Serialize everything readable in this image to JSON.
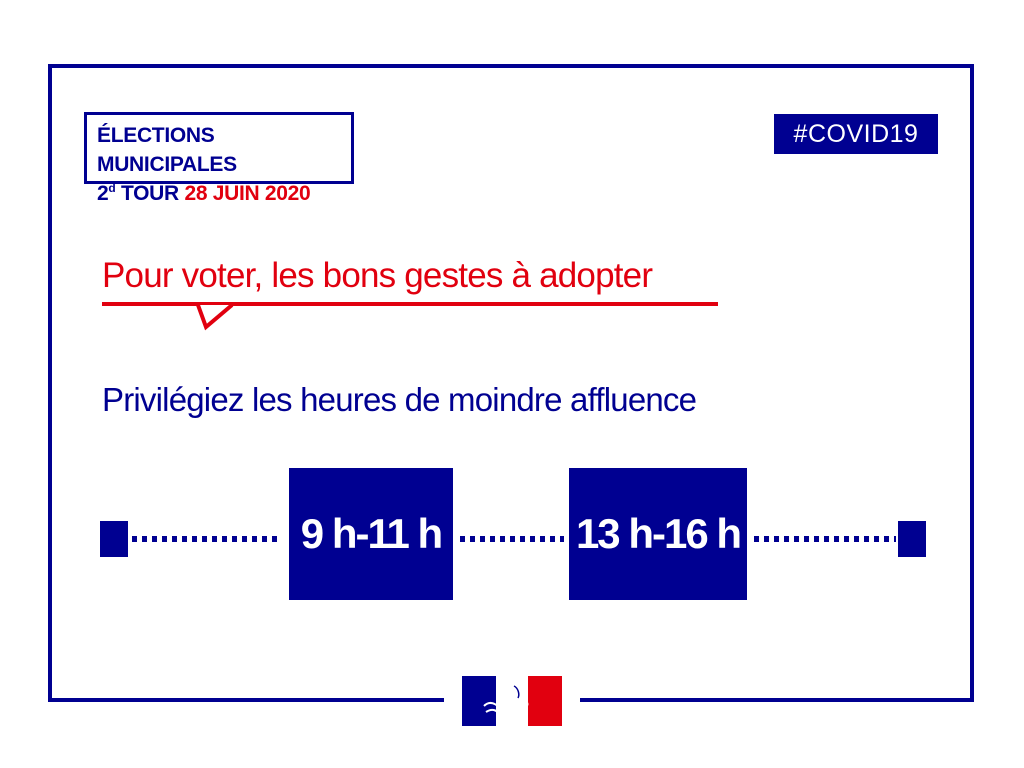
{
  "badge": {
    "line1": "ÉLECTIONS MUNICIPALES",
    "round_number": "2",
    "round_suffix": "d",
    "round_word": "TOUR",
    "date": "28 JUIN 2020"
  },
  "hashtag": "#COVID19",
  "headline": "Pour voter, les bons gestes à adopter",
  "subheadline": "Privilégiez les heures de moindre affluence",
  "time_slots": [
    {
      "label": "9 h-11 h"
    },
    {
      "label": "13 h-16 h"
    }
  ],
  "colors": {
    "blue": "#000091",
    "red": "#e1000f",
    "white": "#ffffff"
  },
  "logo_icon": "marianne-icon"
}
